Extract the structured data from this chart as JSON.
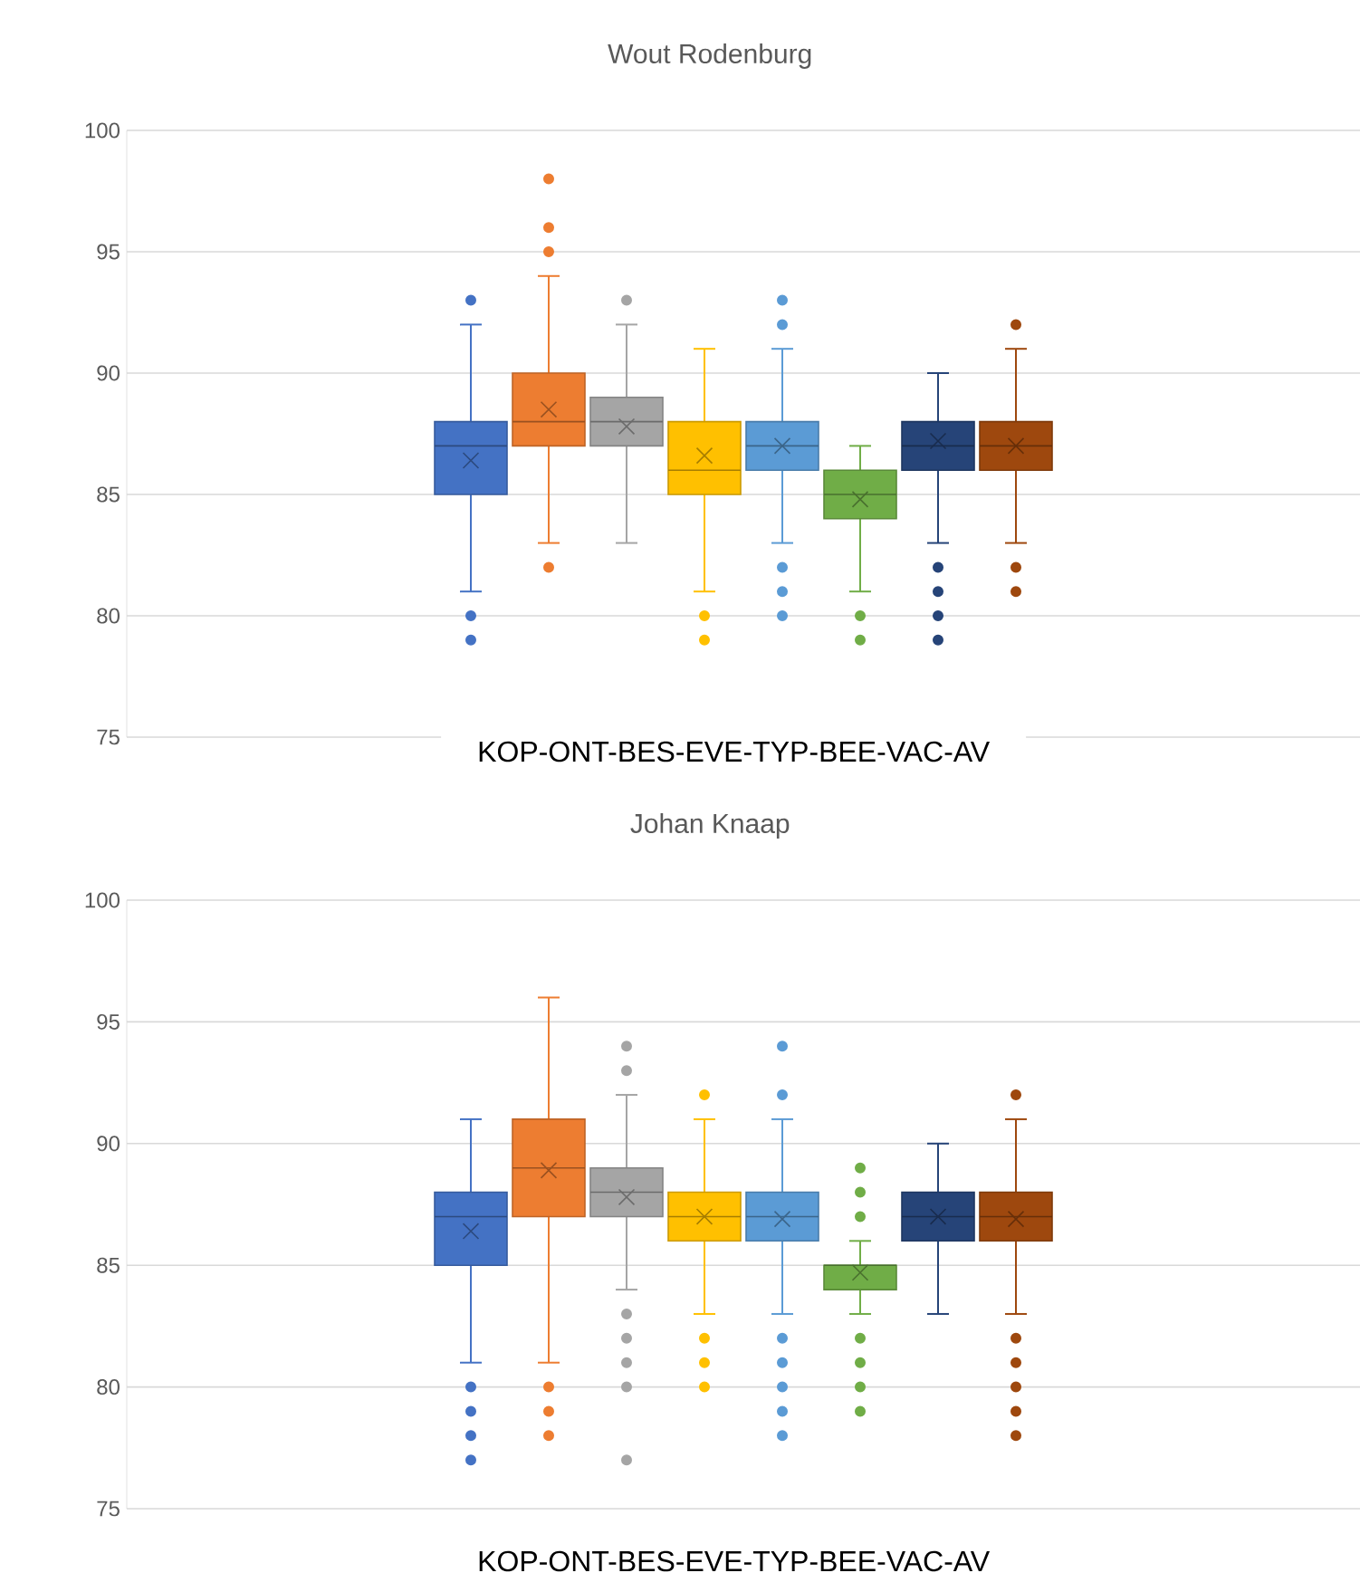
{
  "chart_data": [
    {
      "type": "box",
      "title": "Wout Rodenburg",
      "xlabel": "KOP-ONT-BES-EVE-TYP-BEE-VAC-AV",
      "categories": [
        null
      ],
      "series": [
        {
          "color": "#4472c4",
          "boxes": [
            {
              "low": 81,
              "q1": 85,
              "median": 87,
              "q3": 88,
              "high": 92,
              "mean": 86.4,
              "outliers": [
                93,
                80,
                79
              ]
            }
          ]
        },
        {
          "color": "#ed7d31",
          "boxes": [
            {
              "low": 83,
              "q1": 87,
              "median": 88,
              "q3": 90,
              "high": 94,
              "mean": 88.5,
              "outliers": [
                98,
                96,
                95,
                82
              ]
            }
          ]
        },
        {
          "color": "#a5a5a5",
          "boxes": [
            {
              "low": 83,
              "q1": 87,
              "median": 88,
              "q3": 89,
              "high": 92,
              "mean": 87.8,
              "outliers": [
                93
              ]
            }
          ]
        },
        {
          "color": "#ffc000",
          "boxes": [
            {
              "low": 81,
              "q1": 85,
              "median": 86,
              "q3": 88,
              "high": 91,
              "mean": 86.6,
              "outliers": [
                80,
                79
              ]
            }
          ]
        },
        {
          "color": "#5b9bd5",
          "boxes": [
            {
              "low": 83,
              "q1": 86,
              "median": 87,
              "q3": 88,
              "high": 91,
              "mean": 87,
              "outliers": [
                93,
                92,
                82,
                81,
                80
              ]
            }
          ]
        },
        {
          "color": "#70ad47",
          "boxes": [
            {
              "low": 81,
              "q1": 84,
              "median": 85,
              "q3": 86,
              "high": 87,
              "mean": 84.8,
              "outliers": [
                80,
                79
              ]
            }
          ]
        },
        {
          "color": "#264478",
          "boxes": [
            {
              "low": 83,
              "q1": 86,
              "median": 87,
              "q3": 88,
              "high": 90,
              "mean": 87.2,
              "outliers": [
                82,
                81,
                80,
                79
              ]
            }
          ]
        },
        {
          "color": "#9e480e",
          "boxes": [
            {
              "low": 83,
              "q1": 86,
              "median": 87,
              "q3": 88,
              "high": 91,
              "mean": 87,
              "outliers": [
                92,
                82,
                81
              ]
            }
          ]
        }
      ],
      "ylim": [
        75,
        100
      ],
      "yticks": [
        75,
        80,
        85,
        90,
        95,
        100
      ],
      "grid": "y"
    },
    {
      "type": "box",
      "title": "Johan Knaap",
      "xlabel": "KOP-ONT-BES-EVE-TYP-BEE-VAC-AV",
      "categories": [
        null
      ],
      "series": [
        {
          "color": "#4472c4",
          "boxes": [
            {
              "low": 81,
              "q1": 85,
              "median": 87,
              "q3": 88,
              "high": 91,
              "mean": 86.4,
              "outliers": [
                80,
                79,
                78,
                77
              ]
            }
          ]
        },
        {
          "color": "#ed7d31",
          "boxes": [
            {
              "low": 81,
              "q1": 87,
              "median": 89,
              "q3": 91,
              "high": 96,
              "mean": 88.9,
              "outliers": [
                80,
                79,
                78
              ]
            }
          ]
        },
        {
          "color": "#a5a5a5",
          "boxes": [
            {
              "low": 84,
              "q1": 87,
              "median": 88,
              "q3": 89,
              "high": 92,
              "mean": 87.8,
              "outliers": [
                94,
                93,
                83,
                82,
                81,
                80,
                77
              ]
            }
          ]
        },
        {
          "color": "#ffc000",
          "boxes": [
            {
              "low": 83,
              "q1": 86,
              "median": 87,
              "q3": 88,
              "high": 91,
              "mean": 87,
              "outliers": [
                92,
                82,
                81,
                80
              ]
            }
          ]
        },
        {
          "color": "#5b9bd5",
          "boxes": [
            {
              "low": 83,
              "q1": 86,
              "median": 87,
              "q3": 88,
              "high": 91,
              "mean": 86.9,
              "outliers": [
                94,
                92,
                82,
                81,
                80,
                79,
                78
              ]
            }
          ]
        },
        {
          "color": "#70ad47",
          "boxes": [
            {
              "low": 83,
              "q1": 84,
              "median": 85,
              "q3": 85,
              "high": 86,
              "mean": 84.7,
              "outliers": [
                89,
                88,
                87,
                82,
                81,
                80,
                79
              ]
            }
          ]
        },
        {
          "color": "#264478",
          "boxes": [
            {
              "low": 83,
              "q1": 86,
              "median": 87,
              "q3": 88,
              "high": 90,
              "mean": 87
            }
          ]
        },
        {
          "color": "#9e480e",
          "boxes": [
            {
              "low": 83,
              "q1": 86,
              "median": 87,
              "q3": 88,
              "high": 91,
              "mean": 86.9,
              "outliers": [
                92,
                82,
                81,
                80,
                79,
                78
              ]
            }
          ]
        }
      ],
      "ylim": [
        75,
        100
      ],
      "yticks": [
        75,
        80,
        85,
        90,
        95,
        100
      ],
      "grid": "y"
    }
  ]
}
